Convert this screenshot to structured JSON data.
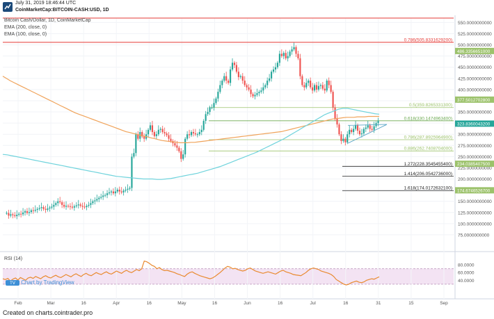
{
  "header": {
    "datetime": "July 31, 2019 18:46:44 UTC",
    "symbol": "CoinMarketCap:BITCOIN-CASH:USD, 1D"
  },
  "legend": {
    "title": "Bitcoin Cash/Dollar, 1D, CoinMarketCap",
    "ema200": "EMA (200, close, 0)",
    "ema100": "EMA (100, close, 0)",
    "rsi": "RSI (14)"
  },
  "watermark": "Chart by TradingView",
  "footer": "Created on charts.cointrader.pro",
  "colors": {
    "up": "#26a69a",
    "down": "#ef5350",
    "ema200": "#f0a35a",
    "ema100": "#6fd3dc",
    "rsi": "#e98a2f",
    "rsi_band": "#f3e3f3",
    "fib_line": "#9cc26b",
    "resistance": "#e53935"
  },
  "chart_data": [
    {
      "type": "candlestick",
      "title": "Bitcoin Cash/Dollar, 1D, CoinMarketCap",
      "ylim": [
        50,
        560
      ],
      "x_ticks": [
        "Feb",
        "Mar",
        "16",
        "Apr",
        "16",
        "May",
        "16",
        "Jun",
        "16",
        "Jul",
        "16",
        "31",
        "15",
        "Sep"
      ],
      "y_ticks": [
        "550.0000000000",
        "525.0000000000",
        "500.0000000000",
        "475.0000000000",
        "450.0000000000",
        "425.0000000000",
        "400.0000000000",
        "375.0000000000",
        "350.0000000000",
        "325.0000000000",
        "300.0000000000",
        "275.0000000000",
        "250.0000000000",
        "225.0000000000",
        "200.0000000000",
        "175.0000000000",
        "150.0000000000",
        "125.0000000000",
        "100.0000000000",
        "75.0000000000"
      ],
      "price_tags": [
        {
          "value": 486.3356651,
          "label": "486.3356651000",
          "color": "#9cc26b"
        },
        {
          "value": 377.5012702,
          "label": "377.5012702800",
          "color": "#9cc26b"
        },
        {
          "value": 323.83600432,
          "label": "323.8360043200",
          "color": "#26a69a"
        },
        {
          "value": 234.03854075,
          "label": "234.0385407500",
          "color": "#9cc26b"
        },
        {
          "value": 174.67465267,
          "label": "174.6746526700",
          "color": "#9cc26b"
        }
      ],
      "fib_levels": [
        {
          "label": "0.786(505.8331629200)",
          "value": 505.83316292,
          "color": "#e53935"
        },
        {
          "label": "0.5(359.8265331300)",
          "value": 359.82653313,
          "color": "#9cc26b"
        },
        {
          "label": "0.618(330.1474963400)",
          "value": 330.14749634,
          "color": "#6aa84f"
        },
        {
          "label": "0.786(287.8925964900)",
          "value": 287.89259649,
          "color": "#9cc26b"
        },
        {
          "label": "0.886(262.7408704000)",
          "value": 262.7408704,
          "color": "#9cc26b"
        },
        {
          "label": "1.272(228.3545455400)",
          "value": 228.35454554,
          "color": "#222222"
        },
        {
          "label": "1.414(206.0542736000)",
          "value": 206.0542736,
          "color": "#222222"
        },
        {
          "label": "1.618(174.0172632100)",
          "value": 174.01726321,
          "color": "#222222"
        }
      ],
      "ohlc_close": [
        124,
        118,
        121,
        119,
        117,
        120,
        122,
        121,
        125,
        128,
        124,
        126,
        130,
        129,
        131,
        133,
        135,
        137,
        133,
        131,
        134,
        136,
        138,
        142,
        146,
        150,
        148,
        142,
        138,
        140,
        139,
        138,
        136,
        139,
        141,
        143,
        140,
        138,
        137,
        140,
        142,
        146,
        150,
        152,
        155,
        158,
        160,
        163,
        164,
        168,
        170,
        172,
        168,
        172,
        176,
        172,
        170,
        174,
        176,
        178,
        180,
        250,
        258,
        300,
        290,
        305,
        295,
        290,
        300,
        310,
        320,
        305,
        296,
        300,
        310,
        312,
        305,
        302,
        298,
        290,
        285,
        280,
        275,
        270,
        262,
        245,
        255,
        290,
        300,
        298,
        305,
        302,
        300,
        300,
        305,
        310,
        330,
        345,
        350,
        360,
        360,
        370,
        380,
        395,
        410,
        420,
        430,
        420,
        415,
        445,
        460,
        455,
        440,
        428,
        430,
        420,
        410,
        405,
        400,
        390,
        385,
        388,
        392,
        395,
        398,
        405,
        410,
        420,
        425,
        440,
        445,
        450,
        460,
        480,
        475,
        482,
        470,
        475,
        485,
        490,
        495,
        480,
        470,
        430,
        410,
        405,
        415,
        420,
        405,
        398,
        410,
        400,
        408,
        410,
        402,
        398,
        420,
        410,
        395,
        360,
        335,
        322,
        300,
        285,
        290,
        282,
        300,
        310,
        305,
        312,
        320,
        308,
        300,
        302,
        312,
        315,
        320,
        312,
        310,
        318,
        325,
        330
      ],
      "ema200": [
        430,
        425,
        420,
        416,
        412,
        408,
        404,
        400,
        396,
        392,
        388,
        384,
        380,
        376,
        372,
        368,
        364,
        360,
        356,
        352,
        348,
        345,
        342,
        339,
        336,
        333,
        330,
        327,
        324,
        321,
        318,
        315,
        312,
        309,
        306,
        304,
        302,
        300,
        298,
        296,
        294,
        292,
        290,
        288,
        286,
        285,
        284,
        283,
        282,
        281,
        281,
        281,
        282,
        282,
        283,
        284,
        285,
        286,
        287,
        288,
        289,
        290,
        291,
        292,
        293,
        294,
        295,
        296,
        297,
        298,
        299,
        300,
        301,
        302,
        303,
        304,
        305,
        306,
        308,
        310,
        312,
        314,
        316,
        318,
        320,
        322,
        324,
        326,
        328,
        330,
        332,
        334,
        335,
        336,
        337,
        338,
        338,
        338,
        339,
        339,
        339,
        340,
        340,
        340,
        340
      ],
      "ema100": [
        255,
        254,
        252,
        250,
        248,
        246,
        244,
        242,
        240,
        238,
        236,
        234,
        232,
        230,
        228,
        226,
        224,
        222,
        220,
        218,
        216,
        214,
        212,
        210,
        208,
        206,
        205,
        204,
        203,
        202,
        201,
        200,
        200,
        200,
        199,
        199,
        200,
        201,
        203,
        205,
        207,
        209,
        211,
        213,
        216,
        219,
        222,
        225,
        228,
        232,
        236,
        240,
        244,
        248,
        252,
        256,
        260,
        265,
        270,
        275,
        280,
        285,
        290,
        296,
        302,
        308,
        314,
        320,
        326,
        332,
        338,
        344,
        348,
        352,
        356,
        358,
        358,
        356,
        354,
        352,
        350,
        348,
        346,
        345
      ],
      "rsi_ylim": [
        10,
        100
      ],
      "rsi_ticks": [
        "80.0000",
        "60.0000",
        "40.0000"
      ],
      "rsi_band": [
        30,
        70
      ],
      "rsi": [
        44,
        42,
        45,
        38,
        43,
        46,
        41,
        47,
        44,
        40,
        46,
        48,
        45,
        50,
        47,
        44,
        49,
        52,
        48,
        46,
        50,
        53,
        49,
        47,
        51,
        55,
        52,
        49,
        54,
        57,
        53,
        50,
        55,
        58,
        54,
        52,
        56,
        60,
        57,
        55,
        59,
        62,
        58,
        56,
        60,
        64,
        61,
        58,
        63,
        66,
        62,
        60,
        64,
        68,
        65,
        70,
        90,
        88,
        84,
        79,
        76,
        70,
        73,
        68,
        65,
        66,
        64,
        62,
        60,
        57,
        55,
        52,
        50,
        56,
        60,
        62,
        58,
        55,
        52,
        50,
        48,
        46,
        44,
        46,
        50,
        55,
        60,
        66,
        72,
        76,
        74,
        70,
        71,
        68,
        66,
        64,
        66,
        70,
        72,
        68,
        64,
        62,
        60,
        58,
        60,
        62,
        60,
        58,
        56,
        60,
        64,
        66,
        62,
        60,
        58,
        55,
        54,
        53,
        52,
        56,
        60,
        66,
        70,
        72,
        70,
        68,
        64,
        62,
        60,
        58,
        55,
        50,
        42,
        38,
        34,
        30,
        28,
        30,
        34,
        36,
        38,
        35,
        34,
        36,
        40,
        42,
        44,
        43,
        46,
        49
      ]
    }
  ]
}
